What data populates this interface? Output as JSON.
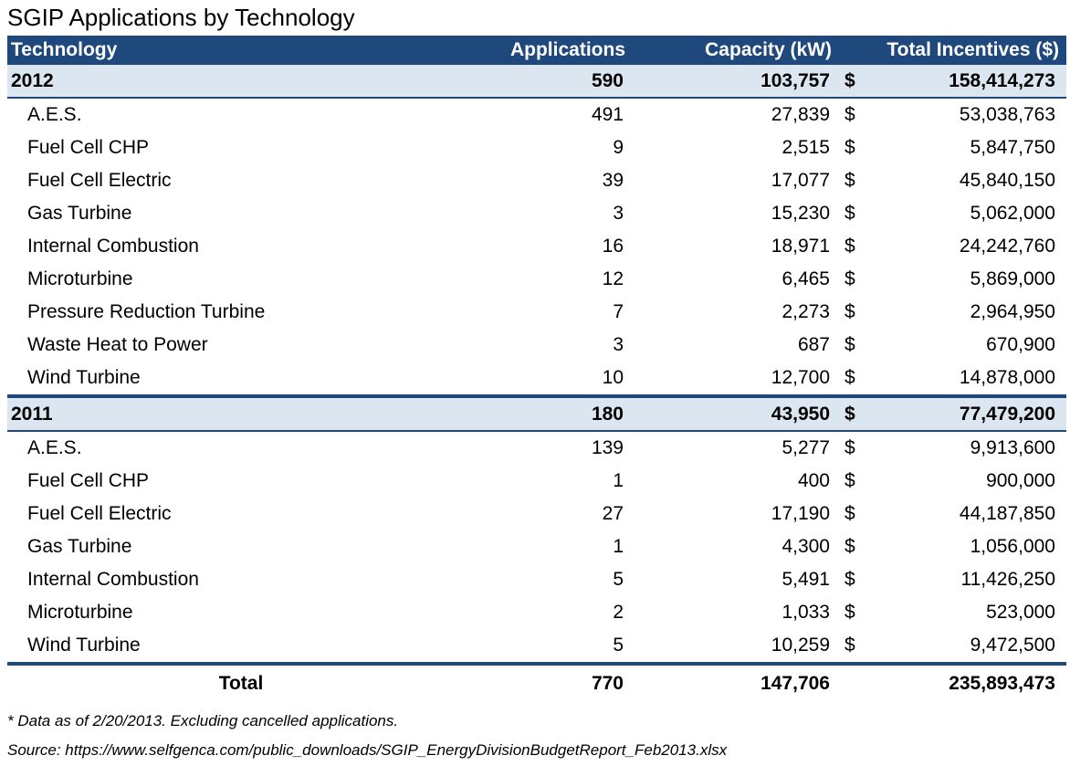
{
  "title": "SGIP Applications by Technology",
  "headers": {
    "technology": "Technology",
    "applications": "Applications",
    "capacity": "Capacity (kW)",
    "incentives": "Total Incentives ($)"
  },
  "currency_symbol": "$",
  "groups": [
    {
      "year": "2012",
      "applications": "590",
      "capacity": "103,757",
      "incentives": "158,414,273",
      "rows": [
        {
          "technology": "A.E.S.",
          "applications": "491",
          "capacity": "27,839",
          "incentives": "53,038,763"
        },
        {
          "technology": "Fuel Cell CHP",
          "applications": "9",
          "capacity": "2,515",
          "incentives": "5,847,750"
        },
        {
          "technology": "Fuel Cell Electric",
          "applications": "39",
          "capacity": "17,077",
          "incentives": "45,840,150"
        },
        {
          "technology": "Gas Turbine",
          "applications": "3",
          "capacity": "15,230",
          "incentives": "5,062,000"
        },
        {
          "technology": "Internal Combustion",
          "applications": "16",
          "capacity": "18,971",
          "incentives": "24,242,760"
        },
        {
          "technology": "Microturbine",
          "applications": "12",
          "capacity": "6,465",
          "incentives": "5,869,000"
        },
        {
          "technology": "Pressure Reduction Turbine",
          "applications": "7",
          "capacity": "2,273",
          "incentives": "2,964,950"
        },
        {
          "technology": "Waste Heat to Power",
          "applications": "3",
          "capacity": "687",
          "incentives": "670,900"
        },
        {
          "technology": "Wind Turbine",
          "applications": "10",
          "capacity": "12,700",
          "incentives": "14,878,000"
        }
      ]
    },
    {
      "year": "2011",
      "applications": "180",
      "capacity": "43,950",
      "incentives": "77,479,200",
      "rows": [
        {
          "technology": "A.E.S.",
          "applications": "139",
          "capacity": "5,277",
          "incentives": "9,913,600"
        },
        {
          "technology": "Fuel Cell CHP",
          "applications": "1",
          "capacity": "400",
          "incentives": "900,000"
        },
        {
          "technology": "Fuel Cell Electric",
          "applications": "27",
          "capacity": "17,190",
          "incentives": "44,187,850"
        },
        {
          "technology": "Gas Turbine",
          "applications": "1",
          "capacity": "4,300",
          "incentives": "1,056,000"
        },
        {
          "technology": "Internal Combustion",
          "applications": "5",
          "capacity": "5,491",
          "incentives": "11,426,250"
        },
        {
          "technology": "Microturbine",
          "applications": "2",
          "capacity": "1,033",
          "incentives": "523,000"
        },
        {
          "technology": "Wind Turbine",
          "applications": "5",
          "capacity": "10,259",
          "incentives": "9,472,500"
        }
      ]
    }
  ],
  "total": {
    "label": "Total",
    "applications": "770",
    "capacity": "147,706",
    "incentives": "235,893,473"
  },
  "notes": {
    "data_note": "* Data as of 2/20/2013.  Excluding cancelled applications.",
    "source": "Source: https://www.selfgenca.com/public_downloads/SGIP_EnergyDivisionBudgetReport_Feb2013.xlsx"
  },
  "colors": {
    "header_bg": "#1f497d",
    "group_bg": "#dce6f1"
  }
}
